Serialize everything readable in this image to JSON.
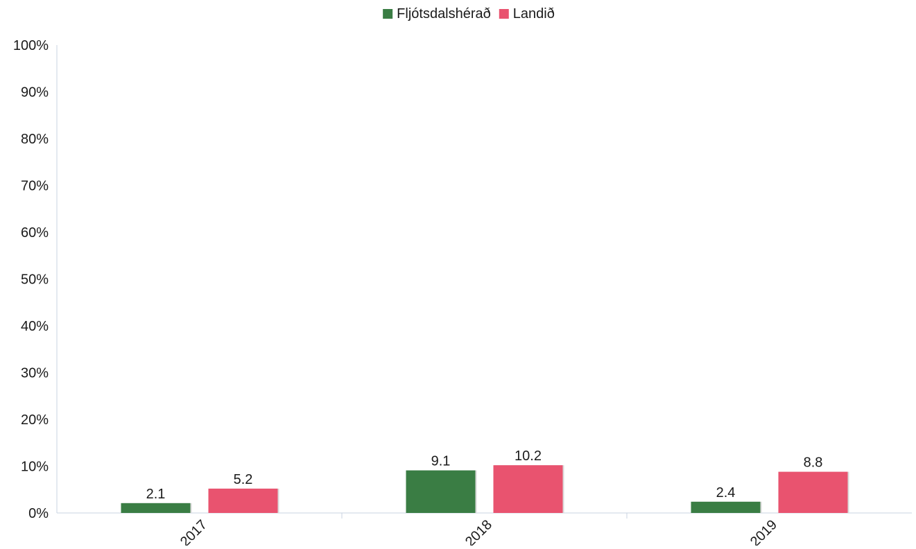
{
  "chart_data": {
    "type": "bar",
    "categories": [
      "2017",
      "2018",
      "2019"
    ],
    "series": [
      {
        "name": "Fljótsdalshérað",
        "color": "#3a7d44",
        "values": [
          2.1,
          9.1,
          2.4
        ],
        "labels": [
          "2.1",
          "9.1",
          "2.4"
        ]
      },
      {
        "name": "Landið",
        "color": "#e9536f",
        "values": [
          5.2,
          10.2,
          8.8
        ],
        "labels": [
          "5.2",
          "10.2",
          "8.8"
        ]
      }
    ],
    "ylim": [
      0,
      100
    ],
    "yticks": [
      0,
      10,
      20,
      30,
      40,
      50,
      60,
      70,
      80,
      90,
      100
    ],
    "ytick_labels": [
      "0%",
      "10%",
      "20%",
      "30%",
      "40%",
      "50%",
      "60%",
      "70%",
      "80%",
      "90%",
      "100%"
    ],
    "legend_position": "top-center",
    "grid": false,
    "axis_color": "#c9d3e0"
  }
}
